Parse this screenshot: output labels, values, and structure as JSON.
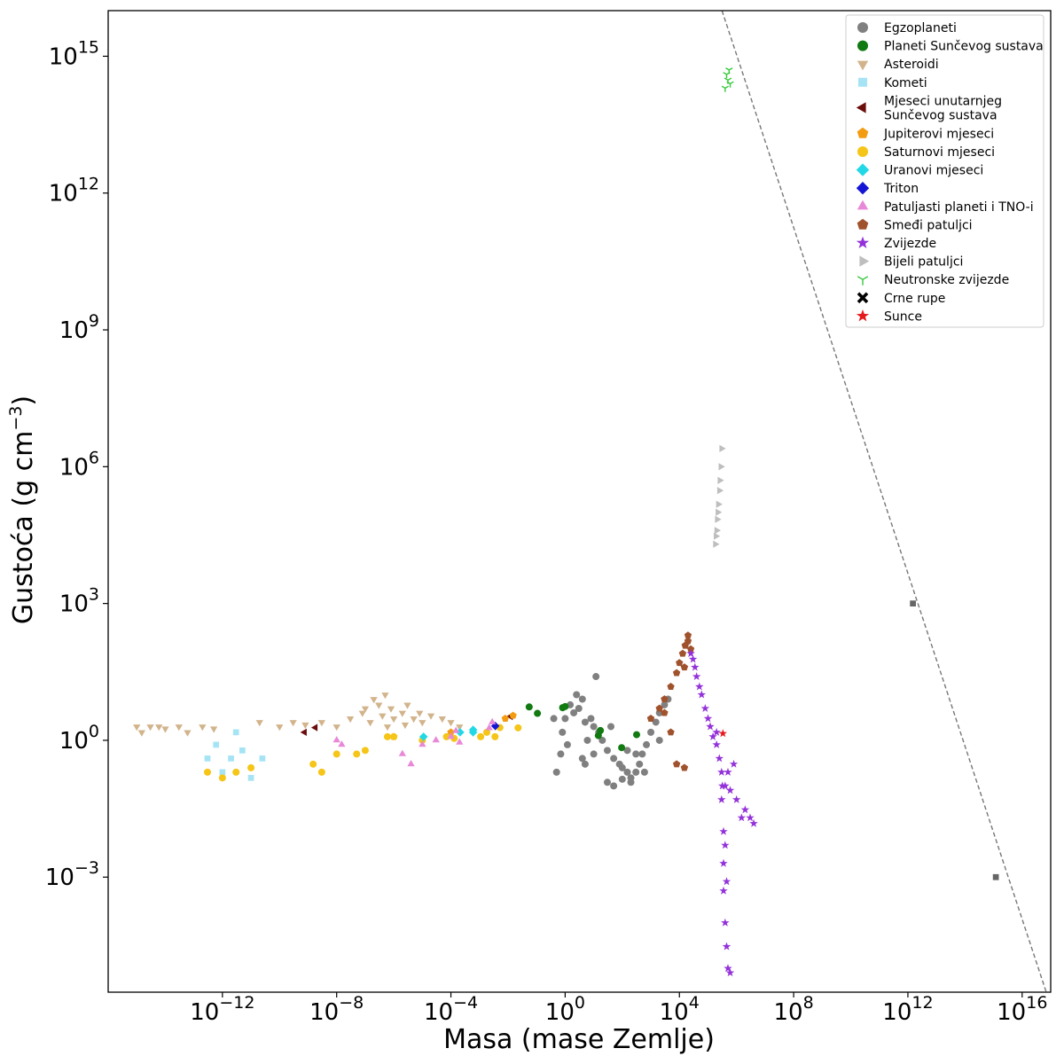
{
  "chart_data": {
    "type": "scatter",
    "title": "",
    "xlabel": "Masa (mase Zemlje)",
    "ylabel_main": "Gustoća (g cm",
    "ylabel_sup": "−3",
    "ylabel_close": ")",
    "x_scale": "log",
    "y_scale": "log",
    "xlim": [
      1e-16,
      1e+17
    ],
    "ylim": [
      3e-06,
      1e+16
    ],
    "grid": false,
    "legend_position": "top-right",
    "x_ticks": [
      {
        "value": 1e-12,
        "base": "10",
        "exp": "−12"
      },
      {
        "value": 1e-08,
        "base": "10",
        "exp": "−8"
      },
      {
        "value": 0.0001,
        "base": "10",
        "exp": "−4"
      },
      {
        "value": 1,
        "base": "10",
        "exp": "0"
      },
      {
        "value": 10000.0,
        "base": "10",
        "exp": "4"
      },
      {
        "value": 100000000.0,
        "base": "10",
        "exp": "8"
      },
      {
        "value": 1000000000000.0,
        "base": "10",
        "exp": "12"
      },
      {
        "value": 1e+16,
        "base": "10",
        "exp": "16"
      }
    ],
    "y_ticks": [
      {
        "value": 0.001,
        "base": "10",
        "exp": "−3"
      },
      {
        "value": 1,
        "base": "10",
        "exp": "0"
      },
      {
        "value": 1000.0,
        "base": "10",
        "exp": "3"
      },
      {
        "value": 1000000.0,
        "base": "10",
        "exp": "6"
      },
      {
        "value": 1000000000.0,
        "base": "10",
        "exp": "9"
      },
      {
        "value": 1000000000000.0,
        "base": "10",
        "exp": "12"
      },
      {
        "value": 1000000000000000.0,
        "base": "10",
        "exp": "15"
      }
    ],
    "reference_line": {
      "points": [
        [
          310000.0,
          1e+16
        ],
        [
          7e+16,
          3e-06
        ]
      ],
      "style": "dashed",
      "color": "#777777"
    },
    "series": [
      {
        "name": "Egzoplaneti",
        "marker": "circle",
        "color": "#808080",
        "points": [
          [
            1,
            3
          ],
          [
            2,
            4
          ],
          [
            3,
            5
          ],
          [
            5,
            2.5
          ],
          [
            8,
            3
          ],
          [
            10,
            2
          ],
          [
            15,
            1.5
          ],
          [
            20,
            1
          ],
          [
            30,
            0.6
          ],
          [
            50,
            0.4
          ],
          [
            80,
            0.3
          ],
          [
            100,
            0.25
          ],
          [
            150,
            0.2
          ],
          [
            200,
            0.15
          ],
          [
            300,
            0.2
          ],
          [
            400,
            0.3
          ],
          [
            500,
            0.5
          ],
          [
            700,
            0.8
          ],
          [
            1000,
            1.5
          ],
          [
            1500,
            2.5
          ],
          [
            2000,
            4
          ],
          [
            3000,
            6
          ],
          [
            4000,
            8
          ],
          [
            0.8,
            1.5
          ],
          [
            1.5,
            6
          ],
          [
            2.5,
            10
          ],
          [
            4,
            8
          ],
          [
            6,
            1
          ],
          [
            10,
            0.5
          ],
          [
            12,
            25
          ],
          [
            0.5,
            0.2
          ],
          [
            30,
            0.12
          ],
          [
            50,
            0.1
          ],
          [
            100,
            0.14
          ],
          [
            200,
            0.12
          ],
          [
            0.4,
            3
          ],
          [
            1.2,
            0.8
          ],
          [
            4,
            0.4
          ],
          [
            300,
            0.5
          ],
          [
            2000,
            1
          ],
          [
            0.7,
            0.5
          ],
          [
            5,
            0.3
          ],
          [
            40,
            2
          ],
          [
            150,
            0.6
          ],
          [
            600,
            0.2
          ]
        ]
      },
      {
        "name": "Planeti Sunčevog sustava",
        "marker": "circle",
        "color": "#117a11",
        "points": [
          [
            0.055,
            5.4
          ],
          [
            0.107,
            3.9
          ],
          [
            0.815,
            5.2
          ],
          [
            1,
            5.5
          ],
          [
            14.5,
            1.27
          ],
          [
            17.1,
            1.64
          ],
          [
            95,
            0.69
          ],
          [
            318,
            1.33
          ]
        ]
      },
      {
        "name": "Asteroidi",
        "marker": "triangle-down",
        "color": "#d2b48c",
        "points": [
          [
            1e-15,
            2
          ],
          [
            1.5e-15,
            1.5
          ],
          [
            3e-15,
            2
          ],
          [
            6e-15,
            2
          ],
          [
            1e-14,
            1.8
          ],
          [
            3e-14,
            2
          ],
          [
            6e-14,
            1.5
          ],
          [
            2e-13,
            2
          ],
          [
            5e-13,
            1.8
          ],
          [
            2e-11,
            2.5
          ],
          [
            1e-10,
            2
          ],
          [
            3e-10,
            2.5
          ],
          [
            8e-10,
            2.2
          ],
          [
            3e-09,
            2.5
          ],
          [
            1e-08,
            2
          ],
          [
            3e-08,
            3
          ],
          [
            8e-08,
            4
          ],
          [
            1e-07,
            5
          ],
          [
            2e-07,
            8
          ],
          [
            3e-07,
            6
          ],
          [
            5e-07,
            10
          ],
          [
            8e-07,
            5
          ],
          [
            1e-06,
            3
          ],
          [
            2e-06,
            4
          ],
          [
            3e-06,
            6
          ],
          [
            5e-06,
            3
          ],
          [
            1e-05,
            2.5
          ],
          [
            2e-05,
            3.5
          ],
          [
            5e-05,
            3
          ],
          [
            0.0001,
            2.5
          ],
          [
            0.0002,
            2
          ],
          [
            1.5e-07,
            2.5
          ],
          [
            4e-07,
            3.5
          ],
          [
            6e-07,
            2
          ],
          [
            2.5e-06,
            2.2
          ],
          [
            8e-06,
            4
          ]
        ]
      },
      {
        "name": "Kometi",
        "marker": "square",
        "color": "#a6e4f5",
        "points": [
          [
            3e-13,
            0.4
          ],
          [
            6e-13,
            0.8
          ],
          [
            1e-12,
            0.2
          ],
          [
            2e-12,
            0.4
          ],
          [
            3e-12,
            1.5
          ],
          [
            5e-12,
            0.6
          ],
          [
            1e-11,
            0.15
          ],
          [
            2.5e-11,
            0.4
          ]
        ]
      },
      {
        "name": "Mjeseci unutarnjeg Sunčevog sustava",
        "name_line1": "Mjeseci unutarnjeg",
        "name_line2": "Sunčevog sustava",
        "marker": "triangle-left",
        "color": "#6b0d0d",
        "points": [
          [
            1.8e-09,
            1.9
          ],
          [
            7.5e-10,
            1.5
          ],
          [
            0.0123,
            3.34
          ]
        ]
      },
      {
        "name": "Jupiterovi mjeseci",
        "marker": "pentagon",
        "color": "#f39c12",
        "points": [
          [
            1e-06,
            1.2
          ],
          [
            0.0001,
            1.5
          ],
          [
            0.015,
            3.5
          ],
          [
            0.008,
            3.0
          ]
        ]
      },
      {
        "name": "Saturnovi mjeseci",
        "marker": "circle",
        "color": "#f5c518",
        "points": [
          [
            3e-13,
            0.2
          ],
          [
            1e-12,
            0.15
          ],
          [
            3e-12,
            0.2
          ],
          [
            1e-11,
            0.25
          ],
          [
            1.5e-09,
            0.3
          ],
          [
            3e-09,
            0.2
          ],
          [
            1e-08,
            0.5
          ],
          [
            5e-08,
            0.5
          ],
          [
            1e-07,
            0.6
          ],
          [
            6e-07,
            1.2
          ],
          [
            1e-06,
            1.2
          ],
          [
            1e-05,
            1.0
          ],
          [
            7e-05,
            1.2
          ],
          [
            0.00013,
            1.1
          ],
          [
            0.0011,
            1.2
          ],
          [
            0.0018,
            1.5
          ],
          [
            0.0035,
            1.2
          ],
          [
            0.0052,
            1.9
          ],
          [
            0.0225,
            1.88
          ]
        ]
      },
      {
        "name": "Uranovi mjeseci",
        "marker": "diamond",
        "color": "#22d8e6",
        "points": [
          [
            1.1e-05,
            1.2
          ],
          [
            0.00021,
            1.5
          ],
          [
            0.0006,
            1.5
          ],
          [
            0.0006,
            1.7
          ]
        ]
      },
      {
        "name": "Triton",
        "marker": "diamond",
        "color": "#1515d6",
        "points": [
          [
            0.00359,
            2.06
          ]
        ]
      },
      {
        "name": "Patuljasti planeti i TNO-i",
        "marker": "triangle-up",
        "color": "#e889d8",
        "points": [
          [
            1e-08,
            1.0
          ],
          [
            1.5e-08,
            0.8
          ],
          [
            2e-06,
            0.5
          ],
          [
            4e-06,
            0.3
          ],
          [
            1e-05,
            0.8
          ],
          [
            3e-05,
            1.0
          ],
          [
            0.0001,
            1.2
          ],
          [
            0.0002,
            0.9
          ],
          [
            0.00015,
            1.6
          ],
          [
            0.0022,
            1.86
          ],
          [
            0.0028,
            2.5
          ]
        ]
      },
      {
        "name": "Smeđi patuljci",
        "marker": "pentagon",
        "color": "#a0522d",
        "points": [
          [
            1000,
            3
          ],
          [
            2000,
            5
          ],
          [
            3000,
            8
          ],
          [
            5000,
            15
          ],
          [
            8000,
            30
          ],
          [
            10000,
            50
          ],
          [
            13000,
            80
          ],
          [
            16000,
            120
          ],
          [
            20000,
            150
          ],
          [
            25000,
            100
          ],
          [
            15000,
            40
          ],
          [
            20000,
            200
          ],
          [
            5000,
            1.5
          ],
          [
            8000,
            0.3
          ],
          [
            15000,
            0.25
          ],
          [
            3000,
            4
          ]
        ]
      },
      {
        "name": "Zvijezde",
        "marker": "star",
        "color": "#9332d9",
        "points": [
          [
            25000,
            80
          ],
          [
            30000,
            60
          ],
          [
            35000,
            40
          ],
          [
            40000,
            25
          ],
          [
            50000,
            15
          ],
          [
            60000,
            10
          ],
          [
            80000,
            5
          ],
          [
            100000,
            3
          ],
          [
            120000,
            2
          ],
          [
            150000,
            1.2
          ],
          [
            200000,
            0.8
          ],
          [
            250000,
            0.4
          ],
          [
            300000,
            0.2
          ],
          [
            400000,
            0.1
          ],
          [
            600000,
            0.08
          ],
          [
            1000000,
            0.05
          ],
          [
            2000000,
            0.03
          ],
          [
            3000000,
            0.02
          ],
          [
            4000000,
            0.015
          ],
          [
            300000,
            0.05
          ],
          [
            350000,
            0.01
          ],
          [
            400000,
            0.005
          ],
          [
            350000,
            0.0005
          ],
          [
            400000,
            0.0001
          ],
          [
            450000,
            3e-05
          ],
          [
            500000,
            1e-05
          ],
          [
            600000,
            8e-06
          ],
          [
            350000,
            0.002
          ],
          [
            450000,
            0.0008
          ],
          [
            320000,
            0.1
          ],
          [
            500000,
            0.2
          ],
          [
            800000,
            0.3
          ],
          [
            200000,
            1.5
          ],
          [
            1500000,
            0.02
          ]
        ]
      },
      {
        "name": "Bijeli patuljci",
        "marker": "triangle-right",
        "color": "#bebebe",
        "points": [
          [
            180000,
            20000
          ],
          [
            200000,
            40000
          ],
          [
            220000,
            100000
          ],
          [
            250000,
            300000
          ],
          [
            280000,
            1000000
          ],
          [
            300000,
            2500000
          ],
          [
            190000,
            30000
          ],
          [
            210000,
            70000
          ],
          [
            230000,
            150000
          ],
          [
            260000,
            500000
          ]
        ]
      },
      {
        "name": "Neutronske zvijezde",
        "marker": "tri-down",
        "color": "#35c93b",
        "points": [
          [
            400000,
            200000000000000.0
          ],
          [
            450000,
            400000000000000.0
          ],
          [
            500000,
            300000000000000.0
          ],
          [
            550000,
            500000000000000.0
          ],
          [
            600000,
            250000000000000.0
          ]
        ]
      },
      {
        "name": "Crne rupe",
        "marker": "x",
        "color": "#000000",
        "points": []
      },
      {
        "name": "Sunce",
        "marker": "star",
        "color": "#e41a1c",
        "points": [
          [
            333000,
            1.41
          ]
        ]
      }
    ],
    "extra_points": [
      {
        "marker": "square",
        "color": "#666666",
        "points": [
          [
            1500000000000.0,
            1000
          ],
          [
            1200000000000000.0,
            0.001
          ]
        ]
      }
    ]
  }
}
